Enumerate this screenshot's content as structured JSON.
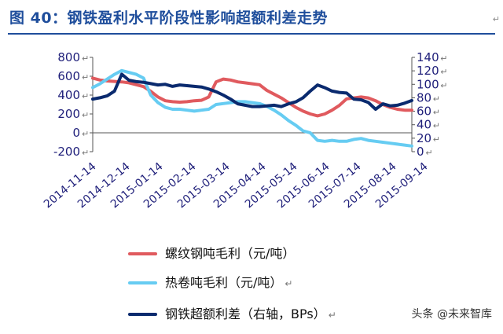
{
  "title": "图 40：钢铁盈利水平阶段性影响超额利差走势",
  "return_mark": "↵",
  "watermark": "头条 @未来智库",
  "chart_data": {
    "type": "line",
    "x": [
      "2014-11-14",
      "2014-11-21",
      "2014-11-28",
      "2014-12-05",
      "2014-12-12",
      "2014-12-19",
      "2014-12-26",
      "2015-01-02",
      "2015-01-09",
      "2015-01-16",
      "2015-01-23",
      "2015-01-30",
      "2015-02-06",
      "2015-02-13",
      "2015-02-20",
      "2015-02-27",
      "2015-03-06",
      "2015-03-13",
      "2015-03-20",
      "2015-03-27",
      "2015-04-03",
      "2015-04-10",
      "2015-04-17",
      "2015-04-24",
      "2015-05-01",
      "2015-05-08",
      "2015-05-15",
      "2015-05-22",
      "2015-05-29",
      "2015-06-05",
      "2015-06-12",
      "2015-06-19",
      "2015-06-26",
      "2015-07-03",
      "2015-07-10",
      "2015-07-17",
      "2015-07-24",
      "2015-07-31",
      "2015-08-07",
      "2015-08-14",
      "2015-08-21",
      "2015-08-28",
      "2015-09-04",
      "2015-09-11",
      "2015-09-18"
    ],
    "x_tick_labels": [
      "2014-11-14",
      "2014-12-14",
      "2015-01-14",
      "2015-02-14",
      "2015-03-14",
      "2015-04-14",
      "2015-05-14",
      "2015-06-14",
      "2015-07-14",
      "2015-08-14",
      "2015-09-14"
    ],
    "y_left": {
      "ticks": [
        800,
        600,
        400,
        200,
        0,
        -200
      ],
      "ylim": [
        -200,
        800
      ]
    },
    "y_right": {
      "ticks": [
        140,
        120,
        100,
        80,
        60,
        40,
        20,
        0
      ],
      "ylim": [
        0,
        140
      ]
    },
    "series": [
      {
        "name": "螺纹钢吨毛利（元/吨）",
        "axis": "left",
        "color": "#e05a5e",
        "values": [
          580,
          560,
          550,
          545,
          540,
          530,
          510,
          490,
          440,
          380,
          340,
          330,
          325,
          330,
          340,
          345,
          380,
          540,
          570,
          560,
          540,
          530,
          520,
          510,
          450,
          410,
          370,
          320,
          270,
          230,
          200,
          180,
          200,
          240,
          290,
          360,
          370,
          380,
          370,
          340,
          300,
          270,
          250,
          240,
          240
        ]
      },
      {
        "name": "热卷吨毛利（元/吨）",
        "axis": "left",
        "color": "#66ccf2",
        "values": [
          480,
          520,
          570,
          620,
          660,
          640,
          620,
          580,
          400,
          320,
          270,
          250,
          250,
          240,
          230,
          240,
          250,
          300,
          310,
          320,
          330,
          330,
          320,
          310,
          280,
          240,
          190,
          130,
          80,
          20,
          0,
          -80,
          -90,
          -80,
          -90,
          -90,
          -70,
          -60,
          -80,
          -90,
          -100,
          -110,
          -120,
          -130,
          -140
        ]
      },
      {
        "name": "钢铁超额利差（右轴，BPs）",
        "axis": "right",
        "color": "#0a2a6e",
        "values": [
          78,
          80,
          83,
          90,
          115,
          106,
          104,
          103,
          101,
          99,
          100,
          97,
          99,
          98,
          97,
          96,
          93,
          89,
          84,
          78,
          71,
          69,
          67,
          67,
          68,
          69,
          67,
          71,
          74,
          80,
          90,
          99,
          95,
          90,
          88,
          87,
          78,
          77,
          73,
          63,
          71,
          68,
          69,
          72,
          76
        ]
      }
    ]
  }
}
